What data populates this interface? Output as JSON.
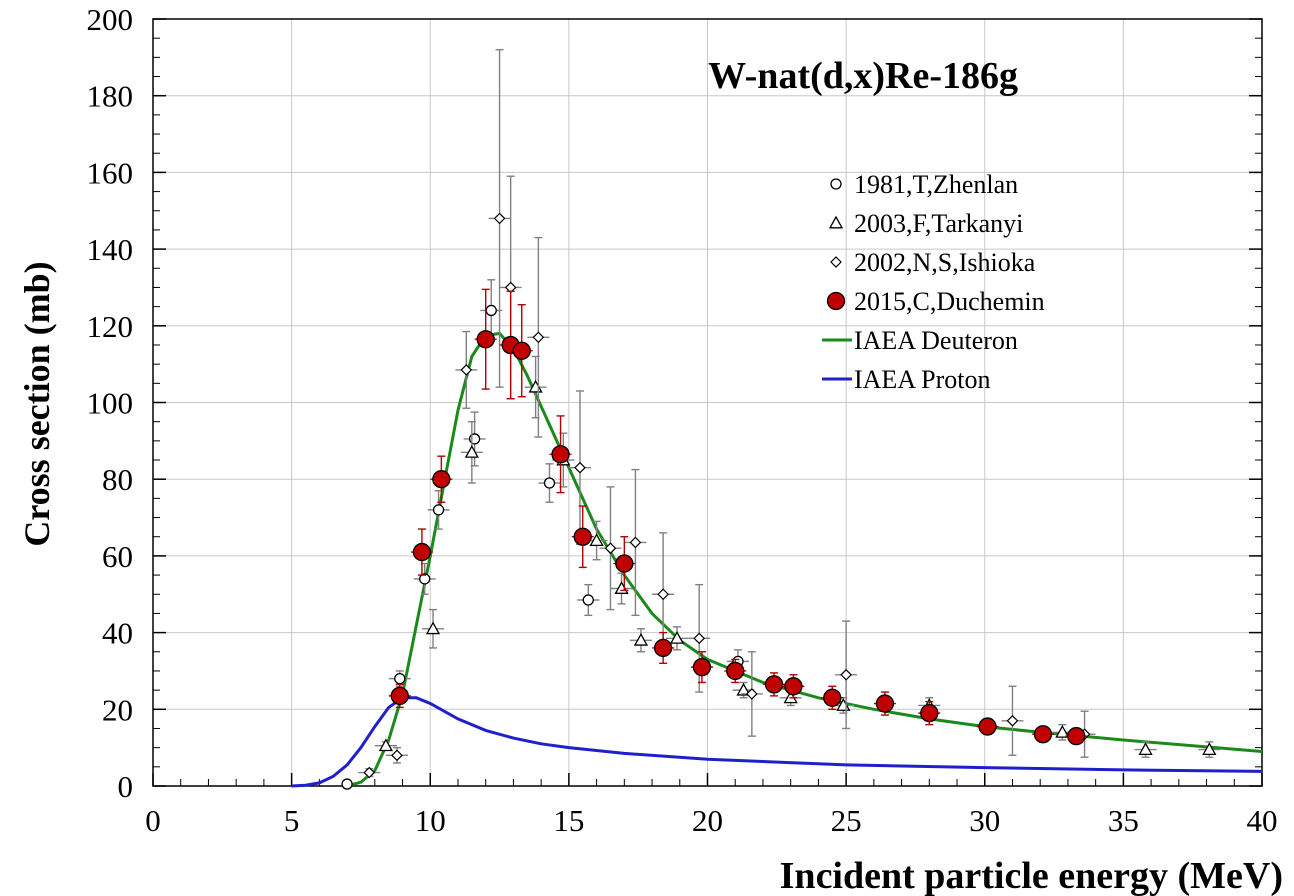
{
  "chart_data": {
    "type": "scatter",
    "title": "W-nat(d,x)Re-186g",
    "xlabel": "Incident particle energy (MeV)",
    "ylabel": "Cross section (mb)",
    "xlim": [
      0,
      40
    ],
    "ylim": [
      0,
      200
    ],
    "xticks": [
      "0",
      "5",
      "10",
      "15",
      "20",
      "25",
      "30",
      "35",
      "40"
    ],
    "yticks": [
      "0",
      "20",
      "40",
      "60",
      "80",
      "100",
      "120",
      "140",
      "160",
      "180",
      "200"
    ],
    "grid": true,
    "legend_position": "top-right",
    "series": [
      {
        "name": "1981,T,Zhenlan",
        "kind": "points",
        "marker": "circle",
        "color": "#000000",
        "points": [
          {
            "x": 7.0,
            "y": 0.5
          },
          {
            "x": 8.9,
            "y": 28.0,
            "ey": 2
          },
          {
            "x": 9.8,
            "y": 54.0,
            "ey": 4
          },
          {
            "x": 10.3,
            "y": 72.0,
            "ey": 5
          },
          {
            "x": 11.6,
            "y": 90.5,
            "ey": 7
          },
          {
            "x": 12.2,
            "y": 124.0,
            "ey": 8
          },
          {
            "x": 14.3,
            "y": 79.0,
            "ey": 5
          },
          {
            "x": 15.7,
            "y": 48.5,
            "ey": 4
          },
          {
            "x": 21.1,
            "y": 32.5,
            "ey": 3
          }
        ]
      },
      {
        "name": "2003,F,Tarkanyi",
        "kind": "points",
        "marker": "triangle",
        "color": "#000000",
        "points": [
          {
            "x": 8.4,
            "y": 10.5,
            "ey": 1
          },
          {
            "x": 10.1,
            "y": 41.0,
            "ey": 5
          },
          {
            "x": 11.5,
            "y": 87.0,
            "ey": 8
          },
          {
            "x": 13.8,
            "y": 104.0,
            "ey": 8
          },
          {
            "x": 14.8,
            "y": 85.0,
            "ey": 7
          },
          {
            "x": 16.0,
            "y": 64.0,
            "ey": 5
          },
          {
            "x": 16.9,
            "y": 51.5,
            "ey": 4
          },
          {
            "x": 17.6,
            "y": 38.0,
            "ey": 3
          },
          {
            "x": 18.9,
            "y": 38.5,
            "ey": 3
          },
          {
            "x": 21.3,
            "y": 25.0,
            "ey": 2
          },
          {
            "x": 23.0,
            "y": 23.0,
            "ey": 2
          },
          {
            "x": 24.9,
            "y": 21.0,
            "ey": 2
          },
          {
            "x": 28.0,
            "y": 21.0,
            "ey": 2
          },
          {
            "x": 32.8,
            "y": 14.0,
            "ey": 2
          },
          {
            "x": 35.8,
            "y": 9.5,
            "ey": 2
          },
          {
            "x": 38.1,
            "y": 9.5,
            "ey": 2
          }
        ]
      },
      {
        "name": "2002,N,S,Ishioka",
        "kind": "points",
        "marker": "diamond",
        "color": "#000000",
        "points": [
          {
            "x": 7.8,
            "y": 3.5,
            "ey": 1
          },
          {
            "x": 8.8,
            "y": 8.0,
            "ey": 2
          },
          {
            "x": 11.3,
            "y": 108.5,
            "ey": 10
          },
          {
            "x": 12.5,
            "y": 148.0,
            "ey": 44
          },
          {
            "x": 12.9,
            "y": 130.0,
            "ey": 29
          },
          {
            "x": 13.9,
            "y": 117.0,
            "ey": 26
          },
          {
            "x": 15.4,
            "y": 83.0,
            "ey": 20
          },
          {
            "x": 16.5,
            "y": 62.0,
            "ey": 16
          },
          {
            "x": 17.4,
            "y": 63.5,
            "ey": 19
          },
          {
            "x": 18.4,
            "y": 50.0,
            "ey": 16
          },
          {
            "x": 19.7,
            "y": 38.5,
            "ey": 14
          },
          {
            "x": 21.6,
            "y": 24.0,
            "ey": 11
          },
          {
            "x": 25.0,
            "y": 29.0,
            "ey": 14
          },
          {
            "x": 31.0,
            "y": 17.0,
            "ey": 9
          },
          {
            "x": 33.6,
            "y": 13.5,
            "ey": 6
          }
        ]
      },
      {
        "name": "2015,C,Duchemin",
        "kind": "points",
        "marker": "filled-circle",
        "color": "#c00000",
        "points": [
          {
            "x": 8.9,
            "y": 23.5,
            "ey": 3
          },
          {
            "x": 9.7,
            "y": 61.0,
            "ey": 6
          },
          {
            "x": 10.4,
            "y": 80.0,
            "ey": 6
          },
          {
            "x": 12.0,
            "y": 116.5,
            "ey": 13
          },
          {
            "x": 12.9,
            "y": 115.0,
            "ey": 14
          },
          {
            "x": 13.3,
            "y": 113.5,
            "ey": 12
          },
          {
            "x": 14.7,
            "y": 86.5,
            "ey": 10
          },
          {
            "x": 15.5,
            "y": 65.0,
            "ey": 8
          },
          {
            "x": 17.0,
            "y": 58.0,
            "ey": 7
          },
          {
            "x": 18.4,
            "y": 36.0,
            "ey": 4
          },
          {
            "x": 19.8,
            "y": 31.0,
            "ey": 4
          },
          {
            "x": 21.0,
            "y": 30.0,
            "ey": 3
          },
          {
            "x": 22.4,
            "y": 26.5,
            "ey": 3
          },
          {
            "x": 23.1,
            "y": 26.0,
            "ey": 3
          },
          {
            "x": 24.5,
            "y": 23.0,
            "ey": 3
          },
          {
            "x": 26.4,
            "y": 21.5,
            "ey": 3
          },
          {
            "x": 28.0,
            "y": 19.0,
            "ey": 3
          },
          {
            "x": 30.1,
            "y": 15.5,
            "ey": 2
          },
          {
            "x": 32.1,
            "y": 13.5,
            "ey": 2
          },
          {
            "x": 33.3,
            "y": 13.0,
            "ey": 2
          }
        ]
      },
      {
        "name": "IAEA Deuteron",
        "kind": "line",
        "color": "#1a8a1a",
        "points": [
          {
            "x": 7.0,
            "y": 0
          },
          {
            "x": 7.5,
            "y": 1
          },
          {
            "x": 8.0,
            "y": 4
          },
          {
            "x": 8.5,
            "y": 12
          },
          {
            "x": 9.0,
            "y": 24
          },
          {
            "x": 9.5,
            "y": 42
          },
          {
            "x": 10.0,
            "y": 60
          },
          {
            "x": 10.5,
            "y": 79
          },
          {
            "x": 11.0,
            "y": 98
          },
          {
            "x": 11.5,
            "y": 112
          },
          {
            "x": 12.0,
            "y": 117.5
          },
          {
            "x": 12.5,
            "y": 118
          },
          {
            "x": 13.0,
            "y": 114
          },
          {
            "x": 13.5,
            "y": 107
          },
          {
            "x": 14.0,
            "y": 99
          },
          {
            "x": 14.5,
            "y": 91
          },
          {
            "x": 15.0,
            "y": 83
          },
          {
            "x": 15.5,
            "y": 75
          },
          {
            "x": 16.0,
            "y": 67
          },
          {
            "x": 17.0,
            "y": 55
          },
          {
            "x": 18.0,
            "y": 45
          },
          {
            "x": 19.0,
            "y": 38
          },
          {
            "x": 20.0,
            "y": 33
          },
          {
            "x": 22.0,
            "y": 27
          },
          {
            "x": 24.0,
            "y": 23
          },
          {
            "x": 26.0,
            "y": 20
          },
          {
            "x": 28.0,
            "y": 17.5
          },
          {
            "x": 30.0,
            "y": 15.5
          },
          {
            "x": 32.0,
            "y": 14
          },
          {
            "x": 35.0,
            "y": 12
          },
          {
            "x": 40.0,
            "y": 9
          }
        ]
      },
      {
        "name": "IAEA Proton",
        "kind": "line",
        "color": "#1f1fcc",
        "points": [
          {
            "x": 5.0,
            "y": 0
          },
          {
            "x": 5.5,
            "y": 0.2
          },
          {
            "x": 6.0,
            "y": 0.8
          },
          {
            "x": 6.5,
            "y": 2.5
          },
          {
            "x": 7.0,
            "y": 5.5
          },
          {
            "x": 7.5,
            "y": 10
          },
          {
            "x": 8.0,
            "y": 15.5
          },
          {
            "x": 8.5,
            "y": 20.5
          },
          {
            "x": 9.0,
            "y": 23
          },
          {
            "x": 9.5,
            "y": 23
          },
          {
            "x": 10.0,
            "y": 21.5
          },
          {
            "x": 11.0,
            "y": 17.5
          },
          {
            "x": 12.0,
            "y": 14.5
          },
          {
            "x": 13.0,
            "y": 12.5
          },
          {
            "x": 14.0,
            "y": 11
          },
          {
            "x": 15.0,
            "y": 10
          },
          {
            "x": 17.0,
            "y": 8.5
          },
          {
            "x": 20.0,
            "y": 7
          },
          {
            "x": 25.0,
            "y": 5.5
          },
          {
            "x": 30.0,
            "y": 4.8
          },
          {
            "x": 35.0,
            "y": 4.2
          },
          {
            "x": 40.0,
            "y": 3.8
          }
        ]
      }
    ]
  }
}
